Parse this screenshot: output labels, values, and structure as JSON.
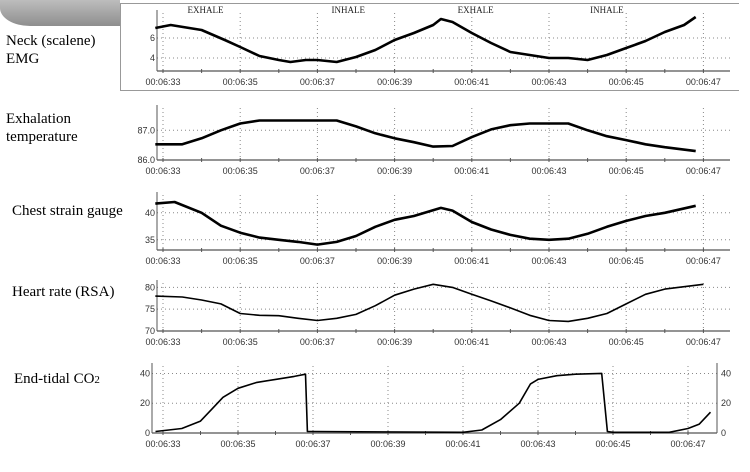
{
  "chart_data": [
    {
      "type": "line",
      "title": "Neck (scalene) EMG",
      "ylim": [
        2.7,
        8.5
      ],
      "yticks": [
        4,
        6
      ],
      "xticks": [
        "00:06:33",
        "00:06:35",
        "00:06:37",
        "00:06:39",
        "00:06:41",
        "00:06:43",
        "00:06:45",
        "00:06:47"
      ],
      "annotations": [
        {
          "text": "EXHALE",
          "x": "00:06:34.1"
        },
        {
          "text": "INHALE",
          "x": "00:06:37.8"
        },
        {
          "text": "EXHALE",
          "x": "00:06:41.1"
        },
        {
          "text": "INHALE",
          "x": "00:06:44.5"
        }
      ],
      "points": [
        [
          "00:06:32.8",
          7.0
        ],
        [
          "00:06:33.2",
          7.3
        ],
        [
          "00:06:34",
          6.8
        ],
        [
          "00:06:34.6",
          5.8
        ],
        [
          "00:06:35",
          5.1
        ],
        [
          "00:06:35.5",
          4.2
        ],
        [
          "00:06:36",
          3.8
        ],
        [
          "00:06:36.3",
          3.6
        ],
        [
          "00:06:36.7",
          3.8
        ],
        [
          "00:06:37",
          3.8
        ],
        [
          "00:06:37.5",
          3.6
        ],
        [
          "00:06:38",
          4.1
        ],
        [
          "00:06:38.5",
          4.8
        ],
        [
          "00:06:39",
          5.8
        ],
        [
          "00:06:39.5",
          6.5
        ],
        [
          "00:06:40",
          7.3
        ],
        [
          "00:06:40.2",
          7.9
        ],
        [
          "00:06:40.5",
          7.6
        ],
        [
          "00:06:41",
          6.5
        ],
        [
          "00:06:41.5",
          5.5
        ],
        [
          "00:06:42",
          4.6
        ],
        [
          "00:06:42.5",
          4.3
        ],
        [
          "00:06:43",
          4.0
        ],
        [
          "00:06:43.5",
          4.0
        ],
        [
          "00:06:44",
          3.8
        ],
        [
          "00:06:44.5",
          4.3
        ],
        [
          "00:06:45",
          5.0
        ],
        [
          "00:06:45.5",
          5.7
        ],
        [
          "00:06:46",
          6.6
        ],
        [
          "00:06:46.5",
          7.3
        ],
        [
          "00:06:46.8",
          8.1
        ]
      ]
    },
    {
      "type": "line",
      "title": "Exhalation temperature",
      "ylim": [
        86.0,
        87.75
      ],
      "yticks": [
        86.0,
        87.0
      ],
      "ytick_labels": [
        "86.0",
        "87.0"
      ],
      "xticks": [
        "00:06:33",
        "00:06:35",
        "00:06:37",
        "00:06:39",
        "00:06:41",
        "00:06:43",
        "00:06:45",
        "00:06:47"
      ],
      "points": [
        [
          "00:06:32.8",
          86.53
        ],
        [
          "00:06:33.5",
          86.53
        ],
        [
          "00:06:34",
          86.73
        ],
        [
          "00:06:34.5",
          87.0
        ],
        [
          "00:06:35",
          87.23
        ],
        [
          "00:06:35.5",
          87.33
        ],
        [
          "00:06:37.5",
          87.33
        ],
        [
          "00:06:38",
          87.13
        ],
        [
          "00:06:38.5",
          86.9
        ],
        [
          "00:06:39",
          86.73
        ],
        [
          "00:06:39.5",
          86.6
        ],
        [
          "00:06:40",
          86.45
        ],
        [
          "00:06:40.5",
          86.47
        ],
        [
          "00:06:41",
          86.77
        ],
        [
          "00:06:41.5",
          87.03
        ],
        [
          "00:06:42",
          87.17
        ],
        [
          "00:06:42.5",
          87.23
        ],
        [
          "00:06:43.5",
          87.23
        ],
        [
          "00:06:44",
          87.0
        ],
        [
          "00:06:44.5",
          86.8
        ],
        [
          "00:06:45",
          86.67
        ],
        [
          "00:06:45.5",
          86.53
        ],
        [
          "00:06:46",
          86.43
        ],
        [
          "00:06:46.8",
          86.3
        ]
      ]
    },
    {
      "type": "line",
      "title": "Chest strain gauge",
      "ylim": [
        33.1,
        43.3
      ],
      "yticks": [
        35,
        40
      ],
      "xticks": [
        "00:06:33",
        "00:06:35",
        "00:06:37",
        "00:06:39",
        "00:06:41",
        "00:06:43",
        "00:06:45",
        "00:06:47"
      ],
      "points": [
        [
          "00:06:32.8",
          41.7
        ],
        [
          "00:06:33.3",
          42.0
        ],
        [
          "00:06:34",
          40.0
        ],
        [
          "00:06:34.5",
          37.6
        ],
        [
          "00:06:35",
          36.3
        ],
        [
          "00:06:35.5",
          35.4
        ],
        [
          "00:06:36",
          35.0
        ],
        [
          "00:06:36.5",
          34.6
        ],
        [
          "00:06:37",
          34.1
        ],
        [
          "00:06:37.5",
          34.6
        ],
        [
          "00:06:38",
          35.7
        ],
        [
          "00:06:38.5",
          37.4
        ],
        [
          "00:06:39",
          38.7
        ],
        [
          "00:06:39.5",
          39.4
        ],
        [
          "00:06:40.2",
          40.9
        ],
        [
          "00:06:40.5",
          40.4
        ],
        [
          "00:06:41",
          38.3
        ],
        [
          "00:06:41.5",
          36.9
        ],
        [
          "00:06:42",
          35.9
        ],
        [
          "00:06:42.5",
          35.2
        ],
        [
          "00:06:43",
          35.0
        ],
        [
          "00:06:43.5",
          35.2
        ],
        [
          "00:06:44",
          36.1
        ],
        [
          "00:06:44.5",
          37.4
        ],
        [
          "00:06:45",
          38.5
        ],
        [
          "00:06:45.5",
          39.4
        ],
        [
          "00:06:46",
          40.0
        ],
        [
          "00:06:46.8",
          41.3
        ]
      ]
    },
    {
      "type": "line",
      "title": "Heart rate (RSA)",
      "ylim": [
        70,
        81
      ],
      "yticks": [
        70,
        75,
        80
      ],
      "xticks": [
        "00:06:33",
        "00:06:35",
        "00:06:37",
        "00:06:39",
        "00:06:41",
        "00:06:43",
        "00:06:45",
        "00:06:47"
      ],
      "points": [
        [
          "00:06:32.8",
          78.0
        ],
        [
          "00:06:33.5",
          77.8
        ],
        [
          "00:06:34",
          77.1
        ],
        [
          "00:06:34.5",
          76.2
        ],
        [
          "00:06:35",
          74.0
        ],
        [
          "00:06:35.5",
          73.6
        ],
        [
          "00:06:36",
          73.5
        ],
        [
          "00:06:36.5",
          72.9
        ],
        [
          "00:06:37",
          72.4
        ],
        [
          "00:06:37.5",
          72.9
        ],
        [
          "00:06:38",
          73.8
        ],
        [
          "00:06:38.5",
          75.8
        ],
        [
          "00:06:39",
          78.2
        ],
        [
          "00:06:39.5",
          79.6
        ],
        [
          "00:06:40",
          80.7
        ],
        [
          "00:06:40.5",
          80.0
        ],
        [
          "00:06:41",
          78.4
        ],
        [
          "00:06:41.5",
          76.9
        ],
        [
          "00:06:42",
          75.3
        ],
        [
          "00:06:42.5",
          73.6
        ],
        [
          "00:06:43",
          72.4
        ],
        [
          "00:06:43.5",
          72.2
        ],
        [
          "00:06:44",
          72.9
        ],
        [
          "00:06:44.5",
          74.0
        ],
        [
          "00:06:45",
          76.2
        ],
        [
          "00:06:45.5",
          78.4
        ],
        [
          "00:06:46",
          79.6
        ],
        [
          "00:06:47",
          80.7
        ]
      ]
    },
    {
      "type": "line",
      "title": "End-tidal CO2",
      "ylim": [
        0,
        45
      ],
      "yticks": [
        0,
        20,
        40
      ],
      "right_axis": true,
      "xticks": [
        "00:06:33",
        "00:06:35",
        "00:06:37",
        "00:06:39",
        "00:06:41",
        "00:06:43",
        "00:06:45",
        "00:06:47"
      ],
      "points": [
        [
          "00:06:32.8",
          1
        ],
        [
          "00:06:33.5",
          3
        ],
        [
          "00:06:34",
          8
        ],
        [
          "00:06:34.3",
          16
        ],
        [
          "00:06:34.6",
          24
        ],
        [
          "00:06:35",
          30
        ],
        [
          "00:06:35.5",
          34
        ],
        [
          "00:06:36",
          36
        ],
        [
          "00:06:36.5",
          38
        ],
        [
          "00:06:36.8",
          39.5
        ],
        [
          "00:06:36.85",
          1
        ],
        [
          "00:06:37",
          1
        ],
        [
          "00:06:41",
          0.5
        ],
        [
          "00:06:41.5",
          2
        ],
        [
          "00:06:42",
          9
        ],
        [
          "00:06:42.5",
          20
        ],
        [
          "00:06:42.8",
          33
        ],
        [
          "00:06:43",
          36
        ],
        [
          "00:06:43.5",
          38.5
        ],
        [
          "00:06:44",
          39.5
        ],
        [
          "00:06:44.7",
          40
        ],
        [
          "00:06:44.85",
          1
        ],
        [
          "00:06:45",
          0.5
        ],
        [
          "00:06:46.5",
          0.5
        ],
        [
          "00:06:47",
          3
        ],
        [
          "00:06:47.3",
          6
        ],
        [
          "00:06:47.6",
          14
        ]
      ]
    }
  ],
  "labels": {
    "p0": [
      "Neck (scalene)",
      "EMG"
    ],
    "p1": [
      "Exhalation",
      "temperature"
    ],
    "p2": [
      "Chest strain gauge"
    ],
    "p3": [
      "Heart rate (RSA)"
    ],
    "p4": [
      "End-tidal CO",
      "2"
    ]
  },
  "colors": {
    "line": "#000000",
    "grid": "#888888",
    "axis": "#555555"
  }
}
